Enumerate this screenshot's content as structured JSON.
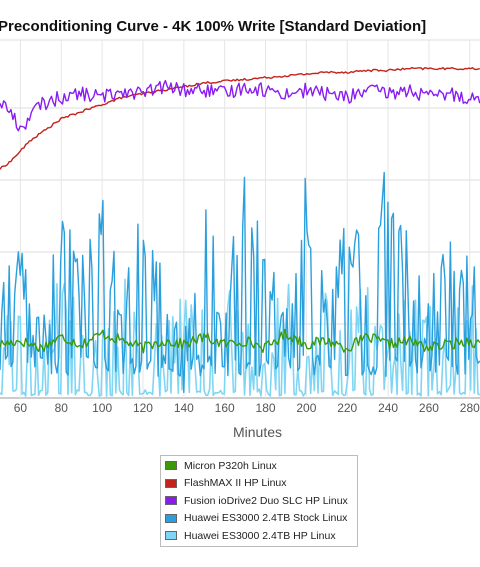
{
  "chart_data": {
    "type": "line",
    "title": "Preconditioning Curve - 4K 100% Write [Standard Deviation]",
    "xlabel": "Minutes",
    "ylabel": "",
    "x_ticks": [
      60,
      80,
      100,
      120,
      140,
      160,
      180,
      200,
      220,
      240,
      260,
      280
    ],
    "xlim": [
      50,
      285
    ],
    "ylim": [
      0,
      100
    ],
    "grid": true,
    "legend_position": "bottom",
    "colors": {
      "micron": "#3a9a0a",
      "flashmax": "#c2231b",
      "fusion": "#8a1cf0",
      "huawei_stock": "#2a9fde",
      "huawei_hp": "#7fd6f4"
    },
    "series": [
      {
        "key": "micron",
        "name": "Micron P320h Linux",
        "color": "#3a9a0a",
        "x": [
          50,
          60,
          70,
          80,
          90,
          100,
          110,
          120,
          130,
          140,
          150,
          160,
          170,
          180,
          190,
          200,
          210,
          220,
          230,
          240,
          250,
          260,
          270,
          280,
          285
        ],
        "values": [
          15,
          16,
          14,
          17,
          15,
          18,
          16,
          14,
          16,
          15,
          17,
          15,
          16,
          14,
          18,
          15,
          16,
          14,
          17,
          15,
          16,
          14,
          15,
          16,
          15
        ]
      },
      {
        "key": "flashmax",
        "name": "FlashMAX II HP Linux",
        "color": "#c2231b",
        "x": [
          50,
          55,
          60,
          65,
          70,
          75,
          80,
          85,
          90,
          95,
          100,
          110,
          120,
          130,
          140,
          150,
          160,
          170,
          180,
          190,
          200,
          210,
          220,
          230,
          240,
          250,
          260,
          270,
          280,
          285
        ],
        "values": [
          64,
          66,
          69,
          72,
          74,
          76,
          78,
          79,
          80,
          81,
          82,
          84,
          85,
          86,
          87,
          88,
          88.5,
          89,
          89.5,
          90,
          90.5,
          91,
          91,
          91.5,
          91.5,
          92,
          92,
          92,
          92,
          92
        ]
      },
      {
        "key": "fusion",
        "name": "Fusion ioDrive2 Duo SLC HP Linux",
        "color": "#8a1cf0",
        "x": [
          50,
          55,
          60,
          65,
          70,
          80,
          90,
          100,
          110,
          120,
          130,
          140,
          150,
          160,
          170,
          180,
          190,
          200,
          210,
          220,
          230,
          240,
          250,
          260,
          270,
          280,
          285
        ],
        "values": [
          83,
          80,
          75,
          79,
          82,
          84,
          85,
          84,
          86,
          85,
          87,
          86,
          86,
          85,
          87,
          86,
          85,
          86,
          85,
          84,
          86,
          85,
          86,
          84,
          85,
          84,
          83
        ]
      },
      {
        "key": "huawei_stock",
        "name": "Huawei ES3000 2.4TB Stock Linux",
        "color": "#2a9fde",
        "x": [
          50,
          60,
          70,
          80,
          90,
          100,
          110,
          120,
          130,
          140,
          150,
          160,
          170,
          180,
          190,
          200,
          210,
          220,
          230,
          240,
          250,
          260,
          270,
          280,
          285
        ],
        "values": [
          22,
          40,
          12,
          45,
          30,
          50,
          20,
          48,
          25,
          10,
          52,
          20,
          60,
          30,
          25,
          55,
          20,
          48,
          30,
          60,
          35,
          22,
          40,
          30,
          25
        ]
      },
      {
        "key": "huawei_hp",
        "name": "Huawei ES3000 2.4TB HP Linux",
        "color": "#7fd6f4",
        "x": [
          50,
          60,
          70,
          80,
          90,
          100,
          110,
          120,
          130,
          140,
          150,
          160,
          170,
          180,
          190,
          200,
          210,
          220,
          230,
          240,
          250,
          260,
          270,
          280,
          285
        ],
        "values": [
          10,
          20,
          5,
          25,
          15,
          8,
          22,
          12,
          6,
          18,
          10,
          24,
          8,
          14,
          20,
          6,
          16,
          10,
          22,
          8,
          18,
          12,
          6,
          20,
          10
        ]
      }
    ]
  }
}
